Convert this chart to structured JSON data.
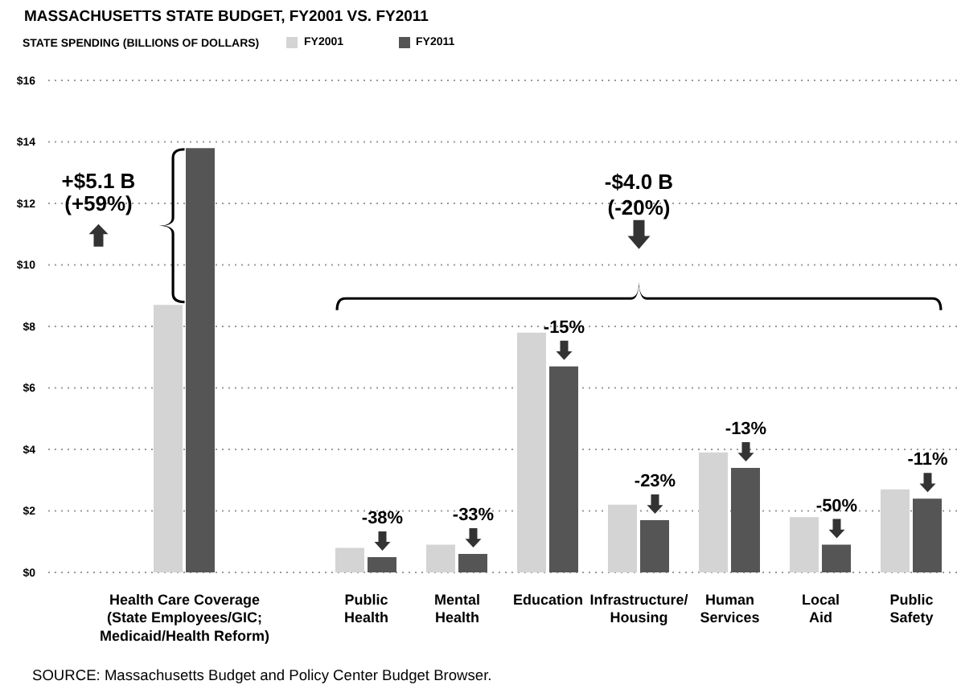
{
  "chart_data": {
    "type": "bar",
    "title": "MASSACHUSETTS STATE BUDGET, FY2001 VS. FY2011",
    "ylabel": "STATE SPENDING (BILLIONS OF DOLLARS)",
    "categories": [
      null,
      "Health Care Coverage\n(State Employees/GIC;\nMedicaid/Health Reform)",
      null,
      "Public\nHealth",
      "Mental\nHealth",
      "Education",
      "Infrastructure/\nHousing",
      "Human\nServices",
      "Local\nAid",
      "Public\nSafety"
    ],
    "series": [
      {
        "name": "FY2001",
        "color": "#d4d4d4",
        "values": [
          null,
          8.7,
          null,
          0.8,
          0.9,
          7.8,
          2.2,
          3.9,
          1.8,
          2.7
        ]
      },
      {
        "name": "FY2011",
        "color": "#555555",
        "values": [
          null,
          13.8,
          null,
          0.5,
          0.6,
          6.7,
          1.7,
          3.4,
          0.9,
          2.4
        ]
      }
    ],
    "ylim": [
      0,
      16
    ],
    "yticks": [
      {
        "value": 0,
        "label": "$0"
      },
      {
        "value": 2,
        "label": "$2"
      },
      {
        "value": 4,
        "label": "$4"
      },
      {
        "value": 6,
        "label": "$6"
      },
      {
        "value": 8,
        "label": "$8"
      },
      {
        "value": 10,
        "label": "$10"
      },
      {
        "value": 12,
        "label": "$12"
      },
      {
        "value": 14,
        "label": "$14"
      },
      {
        "value": 16,
        "label": "$16"
      }
    ],
    "grid": "y",
    "legend": "top",
    "annotations": [
      "+$5.1 B\n(+59%)",
      "-$4.0 B\n(-20%)",
      {
        "text": "-38%",
        "x": "Public\nHealth",
        "y": 0.5
      },
      {
        "text": "-33%",
        "x": "Mental\nHealth",
        "y": 0.6
      },
      {
        "text": "-15%",
        "x": "Education",
        "y": 6.7
      },
      {
        "text": "-23%",
        "x": "Infrastructure/\nHousing",
        "y": 1.7
      },
      {
        "text": "-13%",
        "x": "Human\nServices",
        "y": 3.4
      },
      {
        "text": "-50%",
        "x": "Local\nAid",
        "y": 0.9
      },
      {
        "text": "-11%",
        "x": "Public\nSafety",
        "y": 2.4
      },
      "SOURCE: Massachusetts Budget and Policy Center Budget Browser."
    ]
  }
}
